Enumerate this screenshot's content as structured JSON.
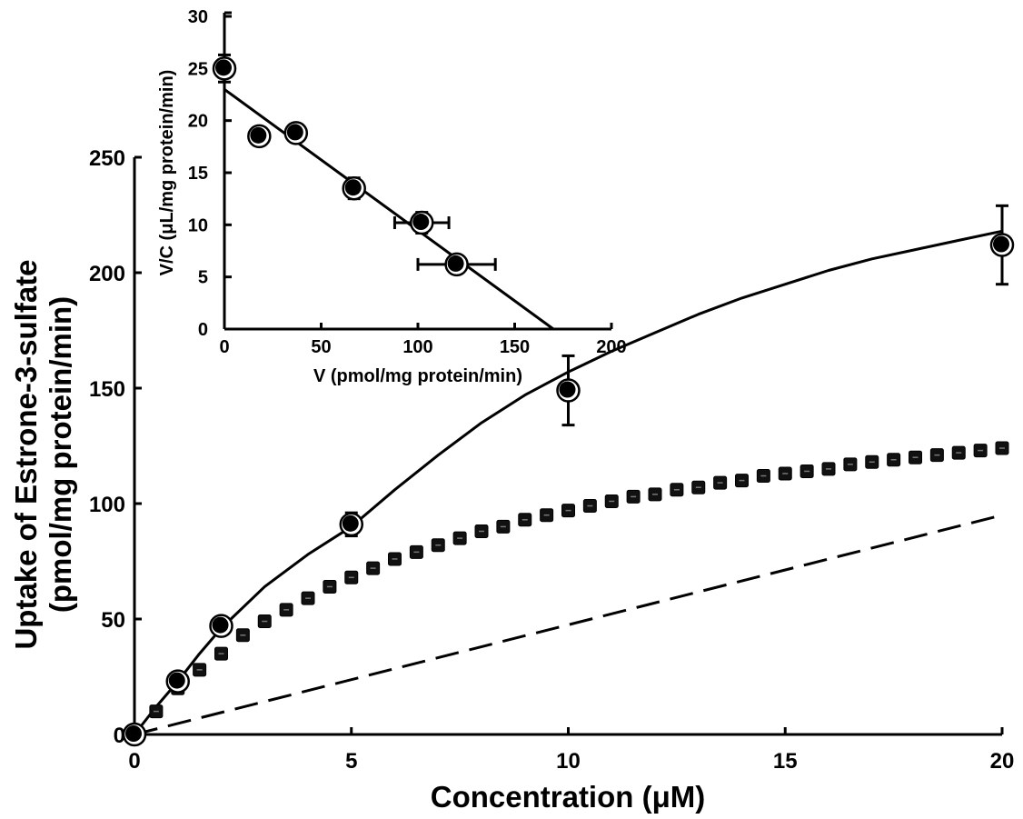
{
  "chart_data": [
    {
      "type": "line",
      "xlabel": "Concentration (μM)",
      "ylabel_lines": [
        "Uptake of Estrone-3-sulfate",
        "(pmol/mg protein/min)"
      ],
      "xlim": [
        0,
        20
      ],
      "ylim": [
        0,
        250
      ],
      "xticks": [
        0,
        5,
        10,
        15,
        20
      ],
      "yticks": [
        0,
        50,
        100,
        150,
        200,
        250
      ],
      "grid": false,
      "legend": "none",
      "points": {
        "x": [
          0,
          1,
          2,
          5,
          10,
          20
        ],
        "y": [
          0,
          23,
          47,
          91,
          149,
          212
        ],
        "yerr": [
          1,
          2,
          2,
          5,
          15,
          17
        ]
      },
      "series": [
        {
          "style": "solid",
          "x": [
            0,
            0.5,
            1,
            1.5,
            2,
            2.5,
            3,
            4,
            5,
            6,
            7,
            8,
            9,
            10,
            11,
            12,
            13,
            14,
            15,
            16,
            17,
            18,
            19,
            20
          ],
          "y": [
            0,
            12,
            23,
            35,
            46,
            55,
            64,
            78,
            90,
            106,
            121,
            135,
            147,
            157,
            166,
            174,
            182,
            189,
            195,
            201,
            206,
            210,
            214,
            218
          ]
        },
        {
          "style": "square-markers",
          "x": [
            0,
            0.5,
            1,
            1.5,
            2,
            2.5,
            3,
            3.5,
            4,
            4.5,
            5,
            5.5,
            6,
            6.5,
            7,
            7.5,
            8,
            8.5,
            9,
            9.5,
            10,
            10.5,
            11,
            11.5,
            12,
            12.5,
            13,
            13.5,
            14,
            14.5,
            15,
            15.5,
            16,
            16.5,
            17,
            17.5,
            18,
            18.5,
            19,
            19.5,
            20
          ],
          "y": [
            0,
            10,
            20,
            28,
            35,
            43,
            49,
            54,
            59,
            64,
            68,
            72,
            76,
            79,
            82,
            85,
            88,
            90,
            93,
            95,
            97,
            99,
            101,
            103,
            104,
            106,
            107,
            109,
            110,
            112,
            113,
            114,
            115,
            117,
            118,
            119,
            120,
            121,
            122,
            123,
            124
          ]
        },
        {
          "style": "dashed",
          "x": [
            0,
            20
          ],
          "y": [
            0,
            95
          ]
        }
      ]
    },
    {
      "type": "scatter",
      "xlabel": "V (pmol/mg protein/min)",
      "ylabel": "V/C  (μL/mg protein/min)",
      "xlim": [
        0,
        200
      ],
      "ylim": [
        0,
        30
      ],
      "xticks": [
        0,
        50,
        100,
        150,
        200
      ],
      "yticks": [
        0,
        5,
        10,
        15,
        20,
        25,
        30
      ],
      "grid": false,
      "legend": "none",
      "points": {
        "x": [
          0,
          18,
          37,
          67,
          102,
          120
        ],
        "y": [
          25,
          18.5,
          18.8,
          13.5,
          10.2,
          6.2
        ],
        "xerr": [
          0,
          0,
          0,
          0,
          14,
          20
        ],
        "yerr": [
          1.3,
          0.5,
          0.5,
          1.0,
          1.0,
          0.8
        ]
      },
      "series": [
        {
          "style": "solid",
          "x": [
            0,
            170
          ],
          "y": [
            23,
            0
          ]
        }
      ]
    }
  ]
}
